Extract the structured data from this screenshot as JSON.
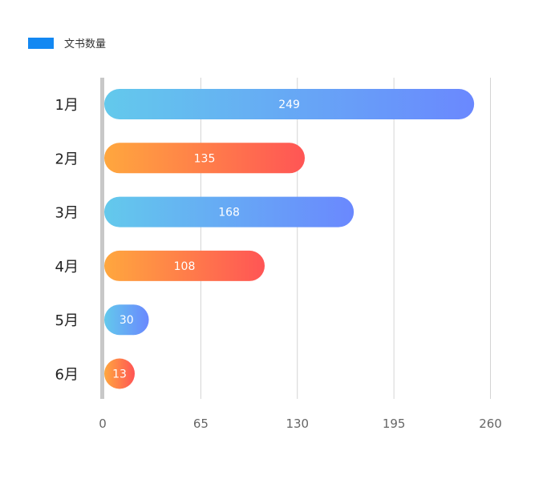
{
  "chart_data": {
    "type": "bar",
    "orientation": "horizontal",
    "title": "",
    "xlabel": "",
    "ylabel": "",
    "legend": {
      "position": "top-left",
      "entries": [
        {
          "label": "文书数量",
          "color": "#1388F2"
        }
      ]
    },
    "categories": [
      "1月",
      "2月",
      "3月",
      "4月",
      "5月",
      "6月"
    ],
    "series": [
      {
        "name": "文书数量",
        "values": [
          249,
          135,
          168,
          108,
          30,
          13
        ]
      }
    ],
    "xlim": [
      0,
      260
    ],
    "xticks": [
      0,
      65,
      130,
      195,
      260
    ],
    "grid": {
      "vertical": true,
      "horizontal": false
    },
    "data_labels": true,
    "bar_gradients": [
      {
        "from": "#63C9EC",
        "to": "#6A88FE"
      },
      {
        "from": "#FFA73E",
        "to": "#FF5555"
      }
    ],
    "axis_color": "#C8C8C8",
    "grid_color": "#D4D4D4",
    "tick_label_color": "#666666",
    "category_label_color": "#222222"
  }
}
